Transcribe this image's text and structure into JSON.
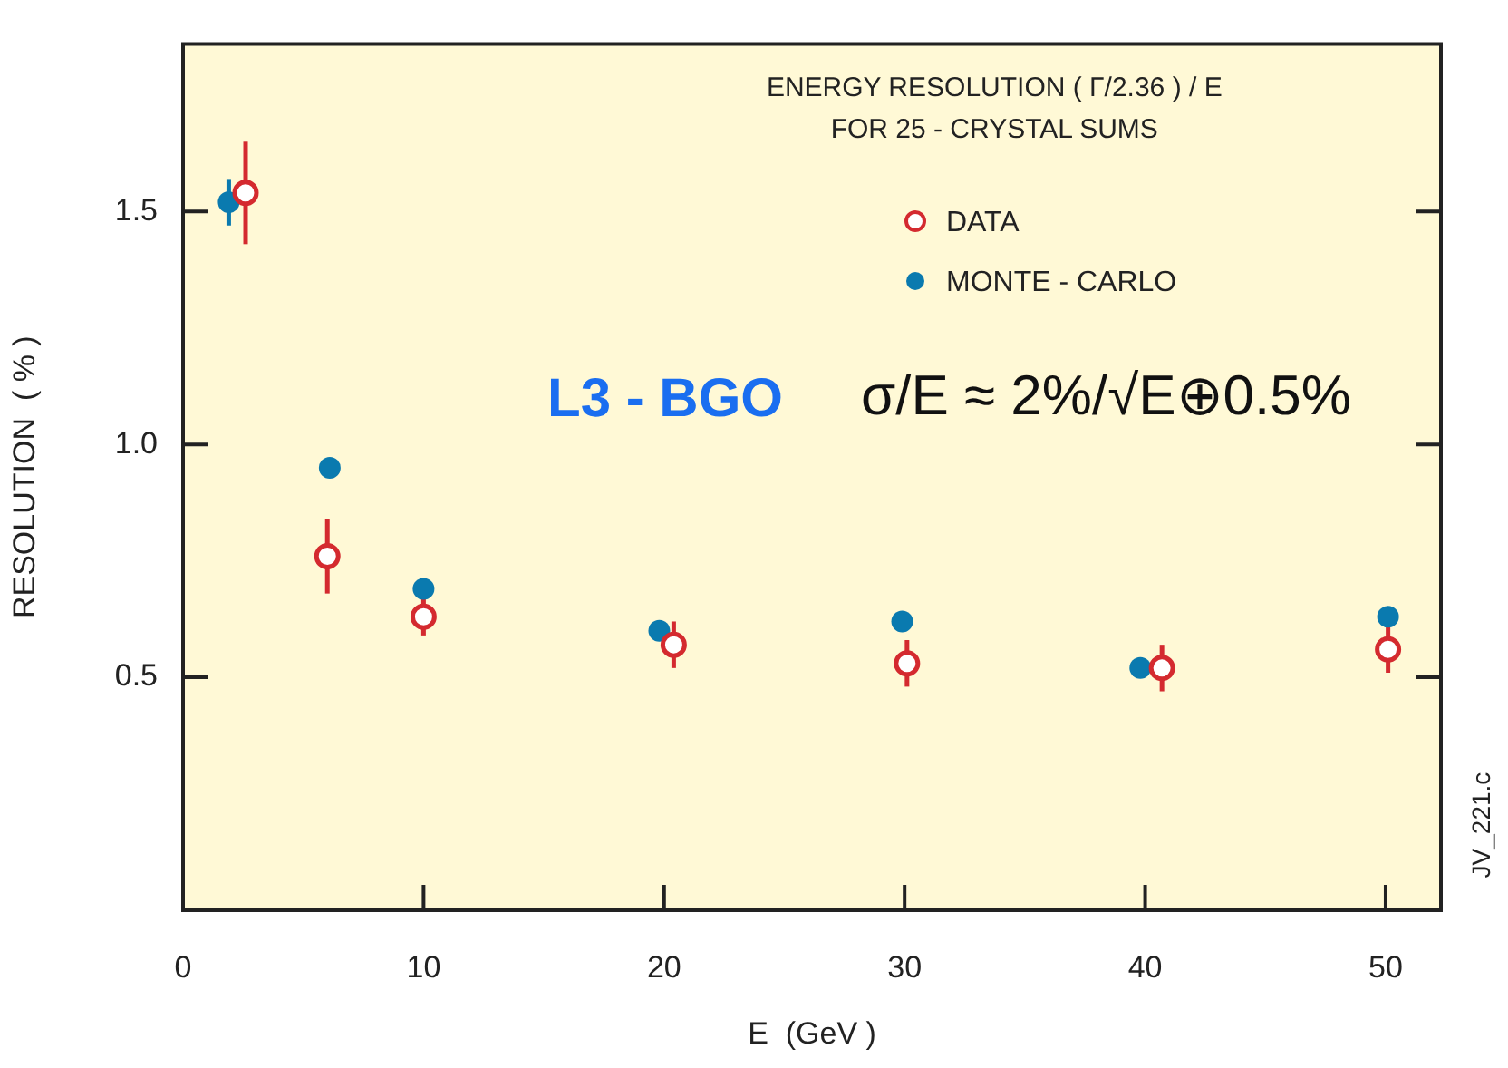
{
  "chart_data": {
    "type": "scatter",
    "title": "ENERGY RESOLUTION ( Γ/2.36 ) / E",
    "subtitle": "FOR 25 - CRYSTAL SUMS",
    "xlabel": "E  (GeV )",
    "ylabel": "RESOLUTION  ( % )",
    "annotations": [
      "L3 - BGO",
      "σ/E ≈ 2%/√E⊕0.5%",
      "JV_221.c"
    ],
    "series": [
      {
        "name": "DATA",
        "color": "#d42a2f",
        "x": [
          2.6,
          6.0,
          10.0,
          20.4,
          30.1,
          40.7,
          50.1
        ],
        "values": [
          1.54,
          0.76,
          0.63,
          0.57,
          0.53,
          0.52,
          0.56
        ],
        "errors": [
          0.11,
          0.08,
          0.04,
          0.05,
          0.05,
          0.05,
          0.05
        ]
      },
      {
        "name": "MONTE - CARLO",
        "color": "#0a7aaf",
        "x": [
          1.9,
          6.1,
          10.0,
          19.8,
          29.9,
          39.8,
          50.1
        ],
        "values": [
          1.52,
          0.95,
          0.69,
          0.6,
          0.62,
          0.52,
          0.63
        ],
        "errors": [
          0.05,
          null,
          null,
          null,
          null,
          null,
          null
        ]
      }
    ],
    "xlim": [
      0,
      52.3
    ],
    "xticks": [
      0,
      10,
      20,
      30,
      40,
      50
    ],
    "ylim": [
      0,
      1.86
    ],
    "yticks": [
      0.5,
      {
        "value": 1,
        "label": "1.0"
      },
      1.5
    ],
    "marker": "circle",
    "legend": "top right",
    "grid": false
  }
}
